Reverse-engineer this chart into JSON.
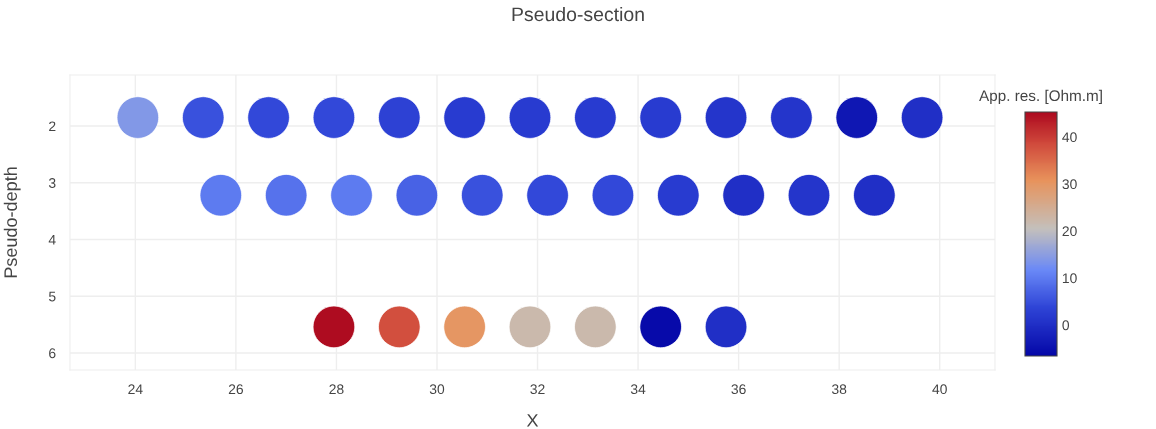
{
  "chart_data": {
    "type": "scatter",
    "title": "Pseudo-section",
    "xlabel": "X",
    "ylabel": "Pseudo-depth",
    "clabel": "App. res. [Ohm.m]",
    "x": [
      24.05,
      25.35,
      26.65,
      27.95,
      29.25,
      30.55,
      31.85,
      33.15,
      34.45,
      35.75,
      37.05,
      38.35,
      39.65,
      25.7,
      27.0,
      28.3,
      29.6,
      30.9,
      32.2,
      33.5,
      34.8,
      36.1,
      37.4,
      38.7,
      27.95,
      29.25,
      30.55,
      31.85,
      33.15,
      34.45,
      35.75
    ],
    "values": [
      1.85,
      1.85,
      1.85,
      1.85,
      1.85,
      1.85,
      1.85,
      1.85,
      1.85,
      1.85,
      1.85,
      1.85,
      1.85,
      3.22,
      3.22,
      3.22,
      3.22,
      3.22,
      3.22,
      3.22,
      3.22,
      3.22,
      3.22,
      3.22,
      5.54,
      5.54,
      5.54,
      5.54,
      5.54,
      5.54,
      5.54
    ],
    "cvalues": [
      14,
      5,
      4,
      4,
      3,
      2,
      2,
      2,
      2,
      1,
      1,
      -4,
      0,
      10,
      9,
      10,
      7,
      5,
      4,
      4,
      2,
      0,
      1,
      0,
      45,
      38,
      30,
      22,
      22,
      -6,
      0
    ],
    "clim": [
      -6.6,
      45.3
    ],
    "cticks": [
      0,
      10,
      20,
      30,
      40
    ],
    "xlim": [
      22.7,
      41.1
    ],
    "xticks": [
      24,
      26,
      28,
      30,
      32,
      34,
      36,
      38,
      40
    ],
    "ylim": [
      6.3,
      1.1
    ],
    "yticks": [
      2,
      3,
      4,
      5,
      6
    ],
    "grid": true,
    "marker": "circle",
    "legend": false
  }
}
